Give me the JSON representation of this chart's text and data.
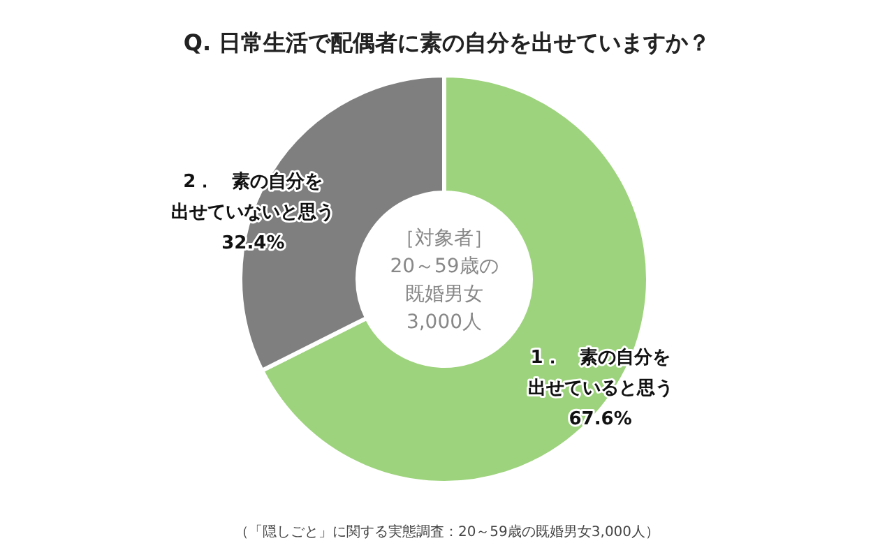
{
  "chart_data": {
    "type": "donut",
    "title": "Q. 日常生活で配偶者に素の自分を出せていますか？",
    "categories": [
      "1．　素の自分を出せていると思う",
      "2．　素の自分を出せていないと思う"
    ],
    "values": [
      67.6,
      32.4
    ],
    "colors": [
      "#9dd37c",
      "#7f7f7f"
    ],
    "value_labels": [
      "67.6%",
      "32.4%"
    ],
    "annotations": [
      "［対象者］20～59歳の既婚男女3,000人",
      "（「隠しごと」に関する実態調査：20～59歳の既婚男女3,000人）"
    ]
  }
}
